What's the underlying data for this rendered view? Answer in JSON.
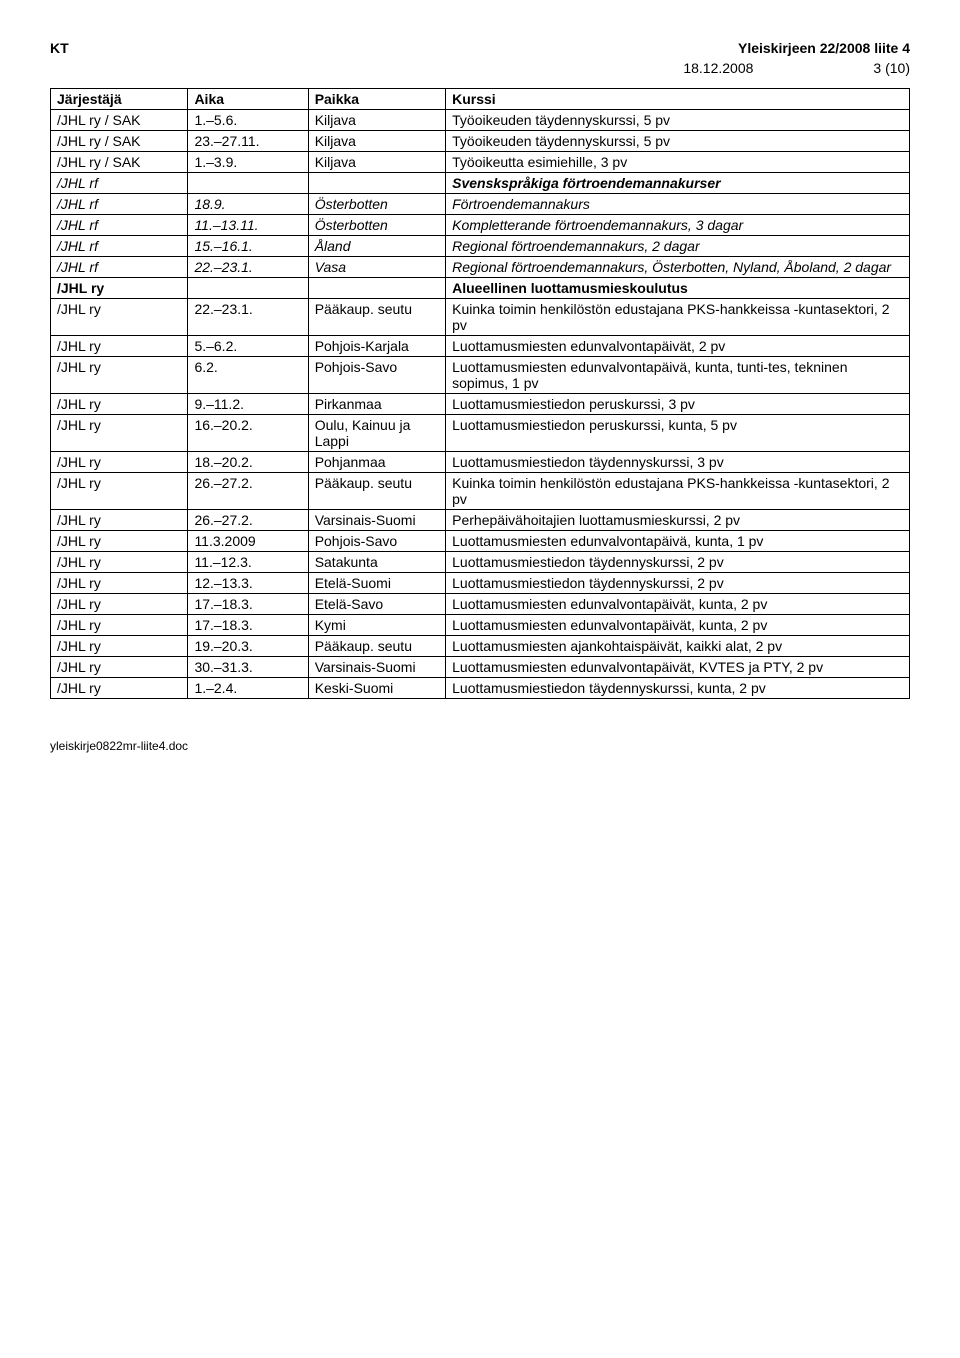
{
  "header": {
    "left": "KT",
    "right": "Yleiskirjeen 22/2008 liite 4",
    "date": "18.12.2008",
    "page": "3 (10)"
  },
  "columns": [
    "Järjestäjä",
    "Aika",
    "Paikka",
    "Kurssi"
  ],
  "rows": [
    {
      "c1": "/JHL ry / SAK",
      "c2": "1.–5.6.",
      "c3": "Kiljava",
      "c4": "Työoikeuden täydennyskurssi, 5 pv"
    },
    {
      "c1": "/JHL ry / SAK",
      "c2": "23.–27.11.",
      "c3": "Kiljava",
      "c4": "Työoikeuden täydennyskurssi, 5 pv"
    },
    {
      "c1": "/JHL ry / SAK",
      "c2": "1.–3.9.",
      "c3": "Kiljava",
      "c4": "Työoikeutta esimiehille, 3 pv"
    },
    {
      "c1": "/JHL rf",
      "c2": "",
      "c3": "",
      "c4": "Svenskspråkiga förtroendemannakurser",
      "italic": true,
      "boldC4": true
    },
    {
      "c1": "/JHL rf",
      "c2": "18.9.",
      "c3": "Österbotten",
      "c4": "Förtroendemannakurs",
      "italic": true
    },
    {
      "c1": "/JHL rf",
      "c2": "11.–13.11.",
      "c3": "Österbotten",
      "c4": "Kompletterande förtroendemannakurs, 3 dagar",
      "italic": true
    },
    {
      "c1": "/JHL rf",
      "c2": "15.–16.1.",
      "c3": "Åland",
      "c4": "Regional förtroendemannakurs, 2 dagar",
      "italic": true
    },
    {
      "c1": "/JHL rf",
      "c2": "22.–23.1.",
      "c3": "Vasa",
      "c4": "Regional förtroendemannakurs, Österbotten, Nyland, Åboland, 2 dagar",
      "italic": true
    },
    {
      "c1": "/JHL ry",
      "c2": "",
      "c3": "",
      "c4": "Alueellinen luottamusmieskoulutus",
      "boldC1": true,
      "boldC4": true
    },
    {
      "c1": "/JHL ry",
      "c2": "22.–23.1.",
      "c3": "Pääkaup. seutu",
      "c4": "Kuinka toimin henkilöstön edustajana PKS-hankkeissa -kuntasektori, 2 pv"
    },
    {
      "c1": "/JHL ry",
      "c2": "5.–6.2.",
      "c3": "Pohjois-Karjala",
      "c4": "Luottamusmiesten edunvalvontapäivät, 2 pv"
    },
    {
      "c1": "/JHL ry",
      "c2": "6.2.",
      "c3": "Pohjois-Savo",
      "c4": "Luottamusmiesten edunvalvontapäivä, kunta, tunti-tes, tekninen sopimus, 1 pv"
    },
    {
      "c1": "/JHL ry",
      "c2": "9.–11.2.",
      "c3": "Pirkanmaa",
      "c4": "Luottamusmiestiedon peruskurssi, 3 pv"
    },
    {
      "c1": "/JHL ry",
      "c2": "16.–20.2.",
      "c3": "Oulu, Kainuu ja Lappi",
      "c4": "Luottamusmiestiedon peruskurssi, kunta, 5 pv"
    },
    {
      "c1": "/JHL ry",
      "c2": "18.–20.2.",
      "c3": "Pohjanmaa",
      "c4": "Luottamusmiestiedon täydennyskurssi, 3 pv"
    },
    {
      "c1": "/JHL ry",
      "c2": "26.–27.2.",
      "c3": "Pääkaup. seutu",
      "c4": "Kuinka toimin henkilöstön edustajana PKS-hankkeissa -kuntasektori, 2 pv"
    },
    {
      "c1": "/JHL ry",
      "c2": "26.–27.2.",
      "c3": "Varsinais-Suomi",
      "c4": "Perhepäivähoitajien luottamusmieskurssi, 2 pv"
    },
    {
      "c1": "/JHL ry",
      "c2": "11.3.2009",
      "c3": "Pohjois-Savo",
      "c4": "Luottamusmiesten edunvalvontapäivä, kunta, 1 pv"
    },
    {
      "c1": "/JHL ry",
      "c2": "11.–12.3.",
      "c3": "Satakunta",
      "c4": "Luottamusmiestiedon täydennyskurssi, 2 pv"
    },
    {
      "c1": "/JHL ry",
      "c2": "12.–13.3.",
      "c3": "Etelä-Suomi",
      "c4": "Luottamusmiestiedon täydennyskurssi, 2 pv"
    },
    {
      "c1": "/JHL ry",
      "c2": "17.–18.3.",
      "c3": "Etelä-Savo",
      "c4": "Luottamusmiesten edunvalvontapäivät, kunta, 2 pv"
    },
    {
      "c1": "/JHL ry",
      "c2": "17.–18.3.",
      "c3": "Kymi",
      "c4": "Luottamusmiesten edunvalvontapäivät, kunta, 2 pv"
    },
    {
      "c1": "/JHL ry",
      "c2": "19.–20.3.",
      "c3": "Pääkaup. seutu",
      "c4": "Luottamusmiesten ajankohtaispäivät, kaikki alat, 2 pv"
    },
    {
      "c1": "/JHL ry",
      "c2": "30.–31.3.",
      "c3": "Varsinais-Suomi",
      "c4": "Luottamusmiesten edunvalvontapäivät, KVTES ja PTY, 2 pv"
    },
    {
      "c1": "/JHL ry",
      "c2": "1.–2.4.",
      "c3": "Keski-Suomi",
      "c4": "Luottamusmiestiedon täydennyskurssi, kunta, 2 pv"
    }
  ],
  "footer": "yleiskirje0822mr-liite4.doc"
}
